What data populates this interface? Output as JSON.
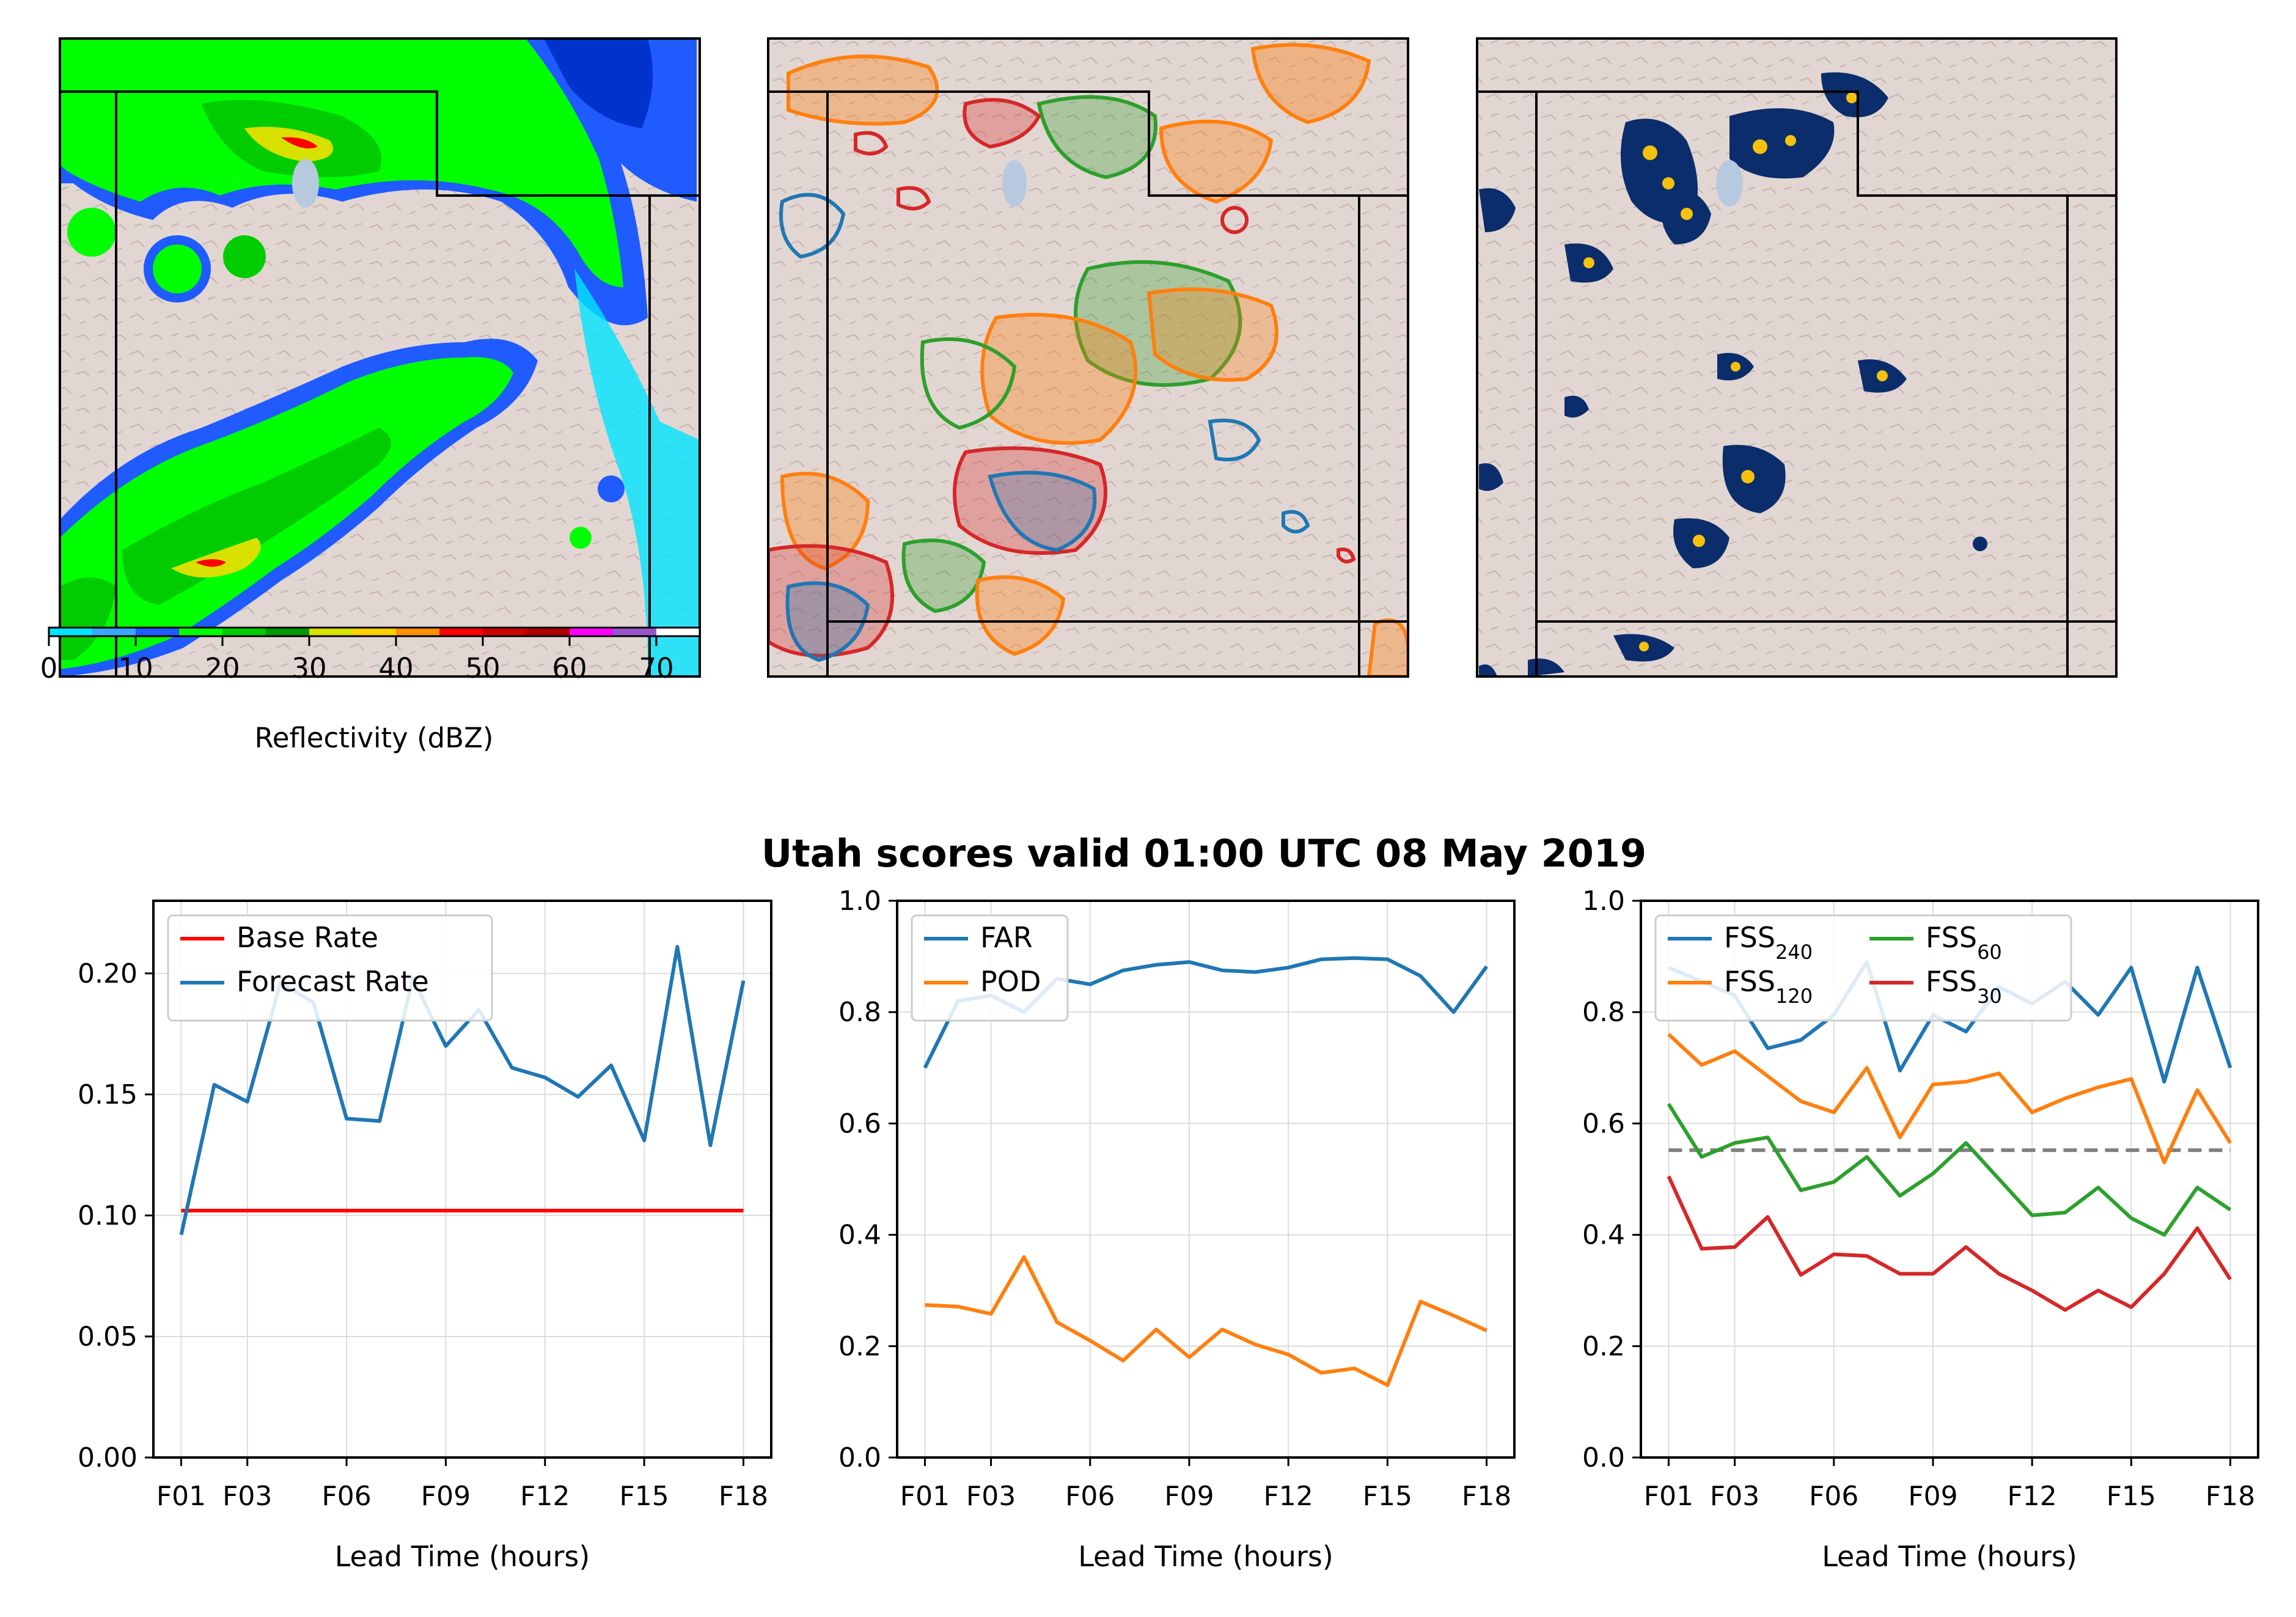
{
  "colors": {
    "terrain": "#e2d6d2",
    "terrain_dark": "#c7b2ac",
    "lake": "#b6c9df",
    "base_rate": "#ff0000",
    "c_blue": "#1f77b4",
    "c_orange": "#ff7f0e",
    "c_green": "#2ca02c",
    "c_red": "#d62728",
    "c_gray": "#808080",
    "navy": "#0b2d6b",
    "gold": "#f4c20d"
  },
  "maps": {
    "colorbar": {
      "label": "Reflectivity (dBZ)",
      "ticks": [
        "0",
        "10",
        "20",
        "30",
        "40",
        "50",
        "60",
        "70"
      ],
      "min": 0,
      "max": 75,
      "bands": [
        {
          "from": 0,
          "to": 5,
          "color": "#00e5ff"
        },
        {
          "from": 5,
          "to": 10,
          "color": "#3aa6ff"
        },
        {
          "from": 10,
          "to": 15,
          "color": "#1f5bff"
        },
        {
          "from": 15,
          "to": 20,
          "color": "#00ff00"
        },
        {
          "from": 20,
          "to": 25,
          "color": "#00cc00"
        },
        {
          "from": 25,
          "to": 30,
          "color": "#009900"
        },
        {
          "from": 30,
          "to": 35,
          "color": "#d8e000"
        },
        {
          "from": 35,
          "to": 40,
          "color": "#ffd000"
        },
        {
          "from": 40,
          "to": 45,
          "color": "#ff9000"
        },
        {
          "from": 45,
          "to": 50,
          "color": "#ff0000"
        },
        {
          "from": 50,
          "to": 55,
          "color": "#d00000"
        },
        {
          "from": 55,
          "to": 60,
          "color": "#b00000"
        },
        {
          "from": 60,
          "to": 65,
          "color": "#ff00ff"
        },
        {
          "from": 65,
          "to": 70,
          "color": "#9955c9"
        },
        {
          "from": 70,
          "to": 75,
          "color": "#ffffff"
        }
      ]
    }
  },
  "scores_title": "Utah scores valid 01:00 UTC 08 May 2019",
  "chart_data": [
    {
      "type": "line",
      "x": [
        "F01",
        "F02",
        "F03",
        "F04",
        "F05",
        "F06",
        "F07",
        "F08",
        "F09",
        "F10",
        "F11",
        "F12",
        "F13",
        "F14",
        "F15",
        "F16",
        "F17",
        "F18"
      ],
      "xticks": [
        "F01",
        "F03",
        "F06",
        "F09",
        "F12",
        "F15",
        "F18"
      ],
      "xlabel": "Lead Time (hours)",
      "ylabel": "",
      "ylim": [
        0,
        0.23
      ],
      "yticks": [
        "0.00",
        "0.05",
        "0.10",
        "0.15",
        "0.20"
      ],
      "grid": true,
      "legend": "top-left",
      "series": [
        {
          "name": "Base Rate",
          "color": "#ff0000",
          "values": [
            0.102,
            0.102,
            0.102,
            0.102,
            0.102,
            0.102,
            0.102,
            0.102,
            0.102,
            0.102,
            0.102,
            0.102,
            0.102,
            0.102,
            0.102,
            0.102,
            0.102,
            0.102
          ]
        },
        {
          "name": "Forecast Rate",
          "color": "#1f77b4",
          "values": [
            0.092,
            0.154,
            0.147,
            0.196,
            0.188,
            0.14,
            0.139,
            0.198,
            0.17,
            0.185,
            0.161,
            0.157,
            0.149,
            0.162,
            0.131,
            0.211,
            0.129,
            0.197
          ]
        }
      ]
    },
    {
      "type": "line",
      "x": [
        "F01",
        "F02",
        "F03",
        "F04",
        "F05",
        "F06",
        "F07",
        "F08",
        "F09",
        "F10",
        "F11",
        "F12",
        "F13",
        "F14",
        "F15",
        "F16",
        "F17",
        "F18"
      ],
      "xticks": [
        "F01",
        "F03",
        "F06",
        "F09",
        "F12",
        "F15",
        "F18"
      ],
      "xlabel": "Lead Time (hours)",
      "ylabel": "",
      "ylim": [
        0,
        1.0
      ],
      "yticks": [
        "0.0",
        "0.2",
        "0.4",
        "0.6",
        "0.8",
        "1.0"
      ],
      "grid": true,
      "legend": "top-left",
      "series": [
        {
          "name": "FAR",
          "color": "#1f77b4",
          "values": [
            0.7,
            0.82,
            0.83,
            0.8,
            0.86,
            0.85,
            0.875,
            0.885,
            0.89,
            0.875,
            0.872,
            0.88,
            0.895,
            0.897,
            0.895,
            0.865,
            0.8,
            0.882
          ]
        },
        {
          "name": "POD",
          "color": "#ff7f0e",
          "values": [
            0.274,
            0.271,
            0.258,
            0.36,
            0.243,
            0.21,
            0.174,
            0.23,
            0.18,
            0.23,
            0.203,
            0.185,
            0.152,
            0.16,
            0.13,
            0.28,
            0.255,
            0.228
          ]
        }
      ]
    },
    {
      "type": "line",
      "x": [
        "F01",
        "F02",
        "F03",
        "F04",
        "F05",
        "F06",
        "F07",
        "F08",
        "F09",
        "F10",
        "F11",
        "F12",
        "F13",
        "F14",
        "F15",
        "F16",
        "F17",
        "F18"
      ],
      "xticks": [
        "F01",
        "F03",
        "F06",
        "F09",
        "F12",
        "F15",
        "F18"
      ],
      "xlabel": "Lead Time (hours)",
      "ylabel": "",
      "ylim": [
        0,
        1.0
      ],
      "yticks": [
        "0.0",
        "0.2",
        "0.4",
        "0.6",
        "0.8",
        "1.0"
      ],
      "grid": true,
      "legend": "top-left, 2 columns",
      "reference_line": {
        "value": 0.552,
        "style": "dashed",
        "color": "#808080"
      },
      "series": [
        {
          "name": "FSS",
          "sub": "240",
          "color": "#1f77b4",
          "values": [
            0.88,
            0.855,
            0.83,
            0.735,
            0.75,
            0.795,
            0.89,
            0.695,
            0.795,
            0.765,
            0.845,
            0.815,
            0.855,
            0.795,
            0.88,
            0.675,
            0.88,
            0.7
          ]
        },
        {
          "name": "FSS",
          "sub": "120",
          "color": "#ff7f0e",
          "values": [
            0.76,
            0.705,
            0.73,
            0.685,
            0.64,
            0.62,
            0.7,
            0.575,
            0.67,
            0.675,
            0.69,
            0.62,
            0.645,
            0.665,
            0.68,
            0.53,
            0.66,
            0.565
          ]
        },
        {
          "name": "FSS",
          "sub": "60",
          "color": "#2ca02c",
          "values": [
            0.635,
            0.54,
            0.565,
            0.575,
            0.48,
            0.495,
            0.54,
            0.47,
            0.51,
            0.565,
            0.5,
            0.435,
            0.44,
            0.485,
            0.43,
            0.4,
            0.485,
            0.445
          ]
        },
        {
          "name": "FSS",
          "sub": "30",
          "color": "#d62728",
          "values": [
            0.505,
            0.375,
            0.378,
            0.432,
            0.328,
            0.365,
            0.362,
            0.33,
            0.33,
            0.378,
            0.33,
            0.3,
            0.265,
            0.3,
            0.27,
            0.33,
            0.412,
            0.32
          ]
        }
      ]
    }
  ]
}
